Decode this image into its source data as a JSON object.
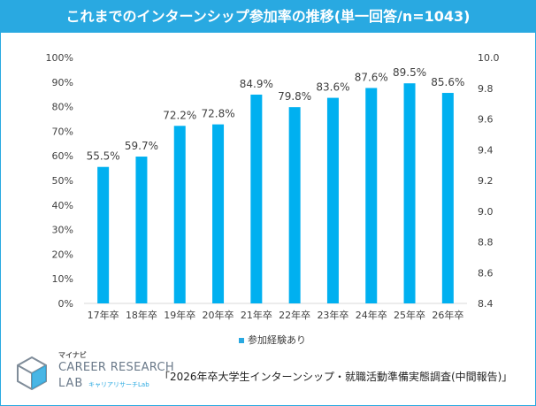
{
  "colors": {
    "accent": "#29a9e1",
    "bar": "#00b0f0",
    "text": "#404040"
  },
  "chart_data": {
    "type": "bar",
    "title": "これまでのインターンシップ参加率の推移(単一回答/n=1043)",
    "categories": [
      "17年卒",
      "18年卒",
      "19年卒",
      "20年卒",
      "21年卒",
      "22年卒",
      "23年卒",
      "24年卒",
      "25年卒",
      "26年卒"
    ],
    "series": [
      {
        "name": "参加経験あり",
        "values": [
          55.5,
          59.7,
          72.2,
          72.8,
          84.9,
          79.8,
          83.6,
          87.6,
          89.5,
          85.6
        ]
      }
    ],
    "data_labels": [
      "55.5%",
      "59.7%",
      "72.2%",
      "72.8%",
      "84.9%",
      "79.8%",
      "83.6%",
      "87.6%",
      "89.5%",
      "85.6%"
    ],
    "ylim": [
      0,
      100
    ],
    "y_ticks": [
      "0%",
      "10%",
      "20%",
      "30%",
      "40%",
      "50%",
      "60%",
      "70%",
      "80%",
      "90%",
      "100%"
    ],
    "y2lim": [
      8.4,
      10.0
    ],
    "y2_ticks": [
      "8.4",
      "8.6",
      "8.8",
      "9.0",
      "9.2",
      "9.4",
      "9.6",
      "9.8",
      "10.0"
    ],
    "legend": "bottom",
    "grid": false
  },
  "footer": {
    "brand_top": "マイナビ",
    "brand_main": "CAREER RESEARCH",
    "brand_lab": "LAB",
    "brand_sub": "キャリアリサーチLab",
    "source": "「2026年卒大学生インターンシップ・就職活動準備実態調査(中間報告)」"
  }
}
